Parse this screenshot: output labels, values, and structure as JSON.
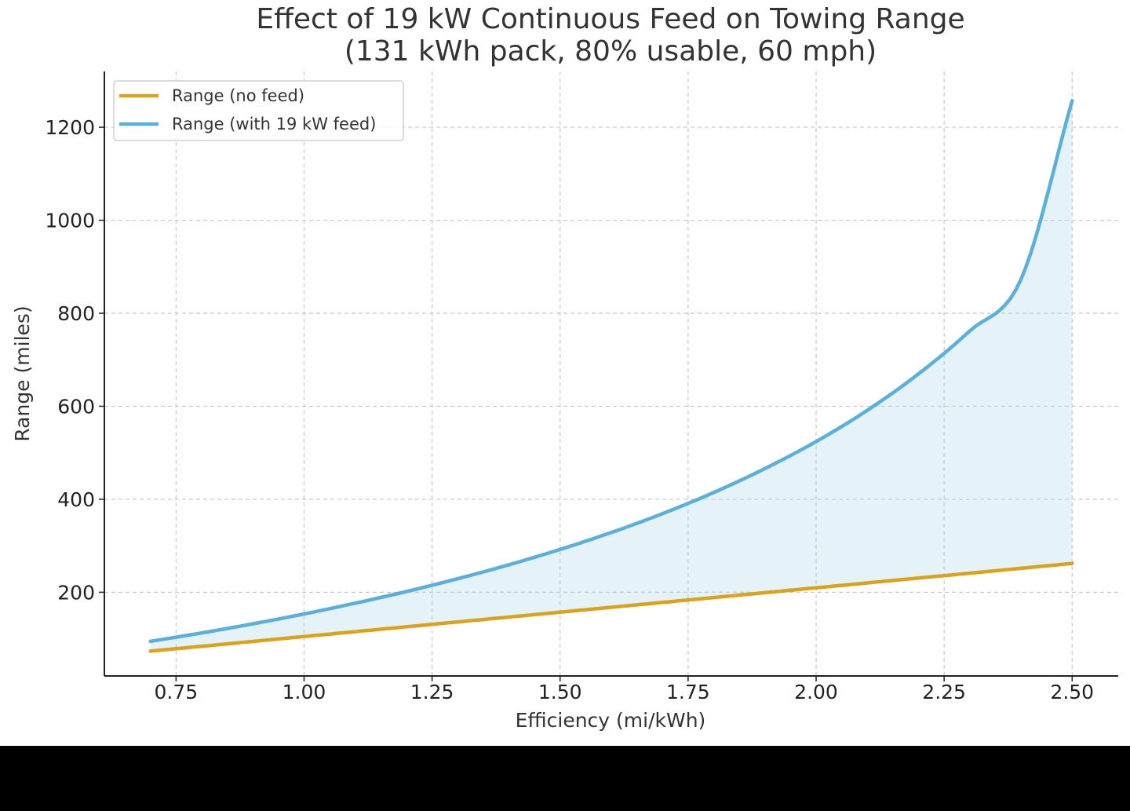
{
  "chart_data": {
    "type": "line",
    "title": [
      "Effect of 19 kW Continuous Feed on Towing Range",
      "(131 kWh pack, 80% usable, 60 mph)"
    ],
    "xlabel": "Efficiency (mi/kWh)",
    "ylabel": "Range (miles)",
    "xlim": [
      0.61,
      2.59
    ],
    "ylim": [
      20,
      1320
    ],
    "xticks": [
      0.75,
      1.0,
      1.25,
      1.5,
      1.75,
      2.0,
      2.25,
      2.5
    ],
    "xtick_labels": [
      "0.75",
      "1.00",
      "1.25",
      "1.50",
      "1.75",
      "2.00",
      "2.25",
      "2.50"
    ],
    "yticks": [
      200,
      400,
      600,
      800,
      1000,
      1200
    ],
    "ytick_labels": [
      "200",
      "400",
      "600",
      "800",
      "1000",
      "1200"
    ],
    "grid": true,
    "legend_position": "upper-left",
    "fill_between": {
      "lower": "Range (no feed)",
      "upper": "Range (with 19 kW feed)",
      "color": "#add8e6"
    },
    "x": [
      0.7,
      0.8,
      0.9,
      1.0,
      1.1,
      1.2,
      1.3,
      1.4,
      1.5,
      1.6,
      1.7,
      1.8,
      1.9,
      2.0,
      2.1,
      2.2,
      2.3,
      2.4,
      2.5
    ],
    "series": [
      {
        "name": "Range (no feed)",
        "color": "#dba21b",
        "values": [
          73.4,
          83.8,
          94.3,
          104.8,
          115.3,
          125.8,
          136.2,
          146.7,
          157.2,
          167.7,
          178.2,
          188.6,
          199.1,
          209.6,
          220.1,
          230.6,
          241.0,
          251.5,
          262.0
        ]
      },
      {
        "name": "Range (with 19 kW feed)",
        "color": "#5ab0da",
        "values": [
          94.5,
          112.5,
          132.1,
          153.3,
          176.5,
          201.6,
          229.1,
          259.1,
          292.1,
          328.5,
          369.1,
          414.5,
          465.9,
          524.1,
          591.3,
          669.6,
          761.9,
          872.6,
          1257.0
        ]
      }
    ]
  }
}
